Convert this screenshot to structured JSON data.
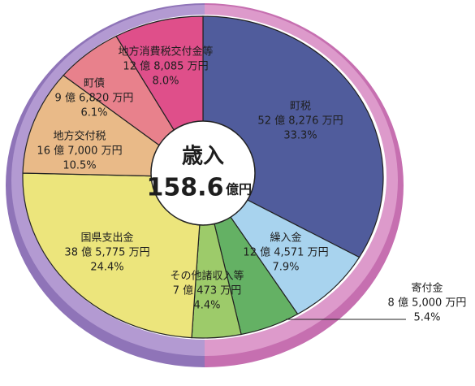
{
  "chart_data": {
    "type": "pie",
    "title": "歳入",
    "total": 158.6,
    "total_unit": "億円",
    "categories": [
      "町税",
      "繰入金",
      "寄付金",
      "その他諸収入等",
      "国県支出金",
      "地方交付税",
      "町債",
      "地方消費税交付金等"
    ],
    "amount_labels": [
      "52 億 8,276 万円",
      "12 億 4,571 万円",
      "8 億 5,000 万円",
      "7 億 473 万円",
      "38 億 5,775 万円",
      "16 億 7,000 万円",
      "9 億 6,820 万円",
      "12 億 8,085 万円"
    ],
    "values": [
      33.3,
      7.9,
      5.4,
      4.4,
      24.4,
      10.5,
      6.1,
      8.0
    ],
    "value_labels": [
      "33.3%",
      "7.9%",
      "5.4%",
      "4.4%",
      "24.4%",
      "10.5%",
      "6.1%",
      "8.0%"
    ],
    "colors": [
      "#505c9c",
      "#a8d3ee",
      "#64b164",
      "#9dcb6a",
      "#ece57c",
      "#e9ba88",
      "#e8818c",
      "#df4f8a"
    ]
  }
}
